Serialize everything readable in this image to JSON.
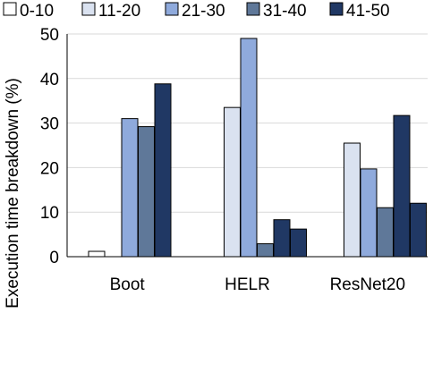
{
  "chart_data": {
    "type": "bar",
    "categories": [
      "Boot",
      "HELR",
      "ResNet20"
    ],
    "series": [
      {
        "name": "0-10",
        "color": "#ffffff",
        "values": [
          1.2,
          0,
          0
        ]
      },
      {
        "name": "11-20",
        "color": "#dae2f0",
        "values": [
          0,
          33.5,
          25.5
        ]
      },
      {
        "name": "21-30",
        "color": "#8faadc",
        "values": [
          31,
          49,
          19.7
        ]
      },
      {
        "name": "31-40",
        "color": "#5f7899",
        "values": [
          29.2,
          2.9,
          11
        ]
      },
      {
        "name": "41-50",
        "color": "#203864",
        "values": [
          38.8,
          8.3,
          31.7
        ]
      }
    ],
    "extra_last": [
      0,
      6.2,
      12
    ],
    "ylabel": "Execution time breakdown (%)",
    "ylim": [
      0,
      50
    ],
    "yticks": [
      "0",
      "10",
      "20",
      "30",
      "40",
      "50"
    ],
    "grid": true,
    "legend": "top"
  }
}
